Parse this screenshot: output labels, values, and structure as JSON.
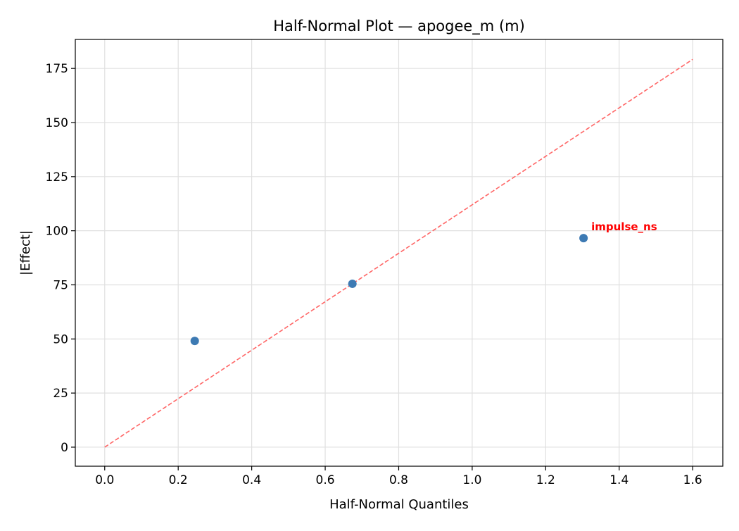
{
  "chart_data": {
    "type": "scatter",
    "title": "Half-Normal Plot — apogee_m (m)",
    "xlabel": "Half-Normal Quantiles",
    "ylabel": "|Effect|",
    "xlim": [
      -0.08,
      1.682
    ],
    "ylim": [
      -8.8,
      188.4
    ],
    "xticks": [
      0.0,
      0.2,
      0.4,
      0.6,
      0.8,
      1.0,
      1.2,
      1.4,
      1.6
    ],
    "xtick_labels": [
      "0.0",
      "0.2",
      "0.4",
      "0.6",
      "0.8",
      "1.0",
      "1.2",
      "1.4",
      "1.6"
    ],
    "yticks": [
      0,
      25,
      50,
      75,
      100,
      125,
      150,
      175
    ],
    "ytick_labels": [
      "0",
      "25",
      "50",
      "75",
      "100",
      "125",
      "150",
      "175"
    ],
    "grid": true,
    "points": [
      {
        "x": 0.245,
        "y": 49.1,
        "label": ""
      },
      {
        "x": 0.674,
        "y": 75.5,
        "label": ""
      },
      {
        "x": 1.303,
        "y": 96.6,
        "label": "impulse_ns"
      }
    ],
    "reference_line": {
      "x": [
        0.0,
        1.6
      ],
      "y": [
        0.0,
        179.2
      ],
      "style": "dashed"
    },
    "colors": {
      "points": "#3d7ab3",
      "reference_line": "#ff6666",
      "annotation": "#ff0000"
    }
  }
}
